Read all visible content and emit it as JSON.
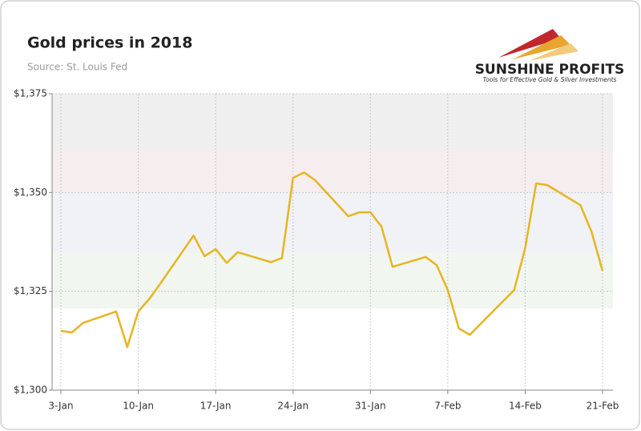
{
  "chart_data": {
    "type": "line",
    "title": "Gold prices in 2018",
    "subtitle": "Source: St. Louis Fed",
    "x": [
      "3-Jan",
      "4-Jan",
      "5-Jan",
      "8-Jan",
      "9-Jan",
      "10-Jan",
      "11-Jan",
      "12-Jan",
      "15-Jan",
      "16-Jan",
      "17-Jan",
      "18-Jan",
      "19-Jan",
      "22-Jan",
      "23-Jan",
      "24-Jan",
      "25-Jan",
      "26-Jan",
      "29-Jan",
      "30-Jan",
      "31-Jan",
      "1-Feb",
      "2-Feb",
      "5-Feb",
      "6-Feb",
      "7-Feb",
      "8-Feb",
      "9-Feb",
      "12-Feb",
      "13-Feb",
      "14-Feb",
      "15-Feb",
      "16-Feb",
      "19-Feb",
      "20-Feb",
      "21-Feb"
    ],
    "series": [
      {
        "name": "Gold price",
        "color": "#e8b422",
        "values": [
          1315.0,
          1314.6,
          1317.0,
          1319.9,
          1310.9,
          1319.9,
          1323.1,
          1327.0,
          1339.1,
          1333.9,
          1335.7,
          1332.2,
          1334.9,
          1332.4,
          1333.4,
          1353.7,
          1355.1,
          1353.1,
          1344.0,
          1345.0,
          1345.0,
          1341.4,
          1331.2,
          1333.7,
          1331.6,
          1325.3,
          1315.6,
          1314.0,
          1322.5,
          1325.3,
          1335.9,
          1352.3,
          1351.9,
          1346.8,
          1340.1,
          1330.2
        ]
      }
    ],
    "xticks": [
      "3-Jan",
      "10-Jan",
      "17-Jan",
      "24-Jan",
      "31-Jan",
      "7-Feb",
      "14-Feb",
      "21-Feb"
    ],
    "ylim": [
      1300,
      1375
    ],
    "yticks": [
      {
        "value": 1300,
        "label": "$1,300"
      },
      {
        "value": 1325,
        "label": "$1,325"
      },
      {
        "value": 1350,
        "label": "$1,350"
      },
      {
        "value": 1375,
        "label": "$1,375"
      }
    ],
    "grid": true
  },
  "logo": {
    "name": "SUNSHINE PROFITS",
    "tagline": "Tools for Effective Gold & Silver Investments"
  }
}
